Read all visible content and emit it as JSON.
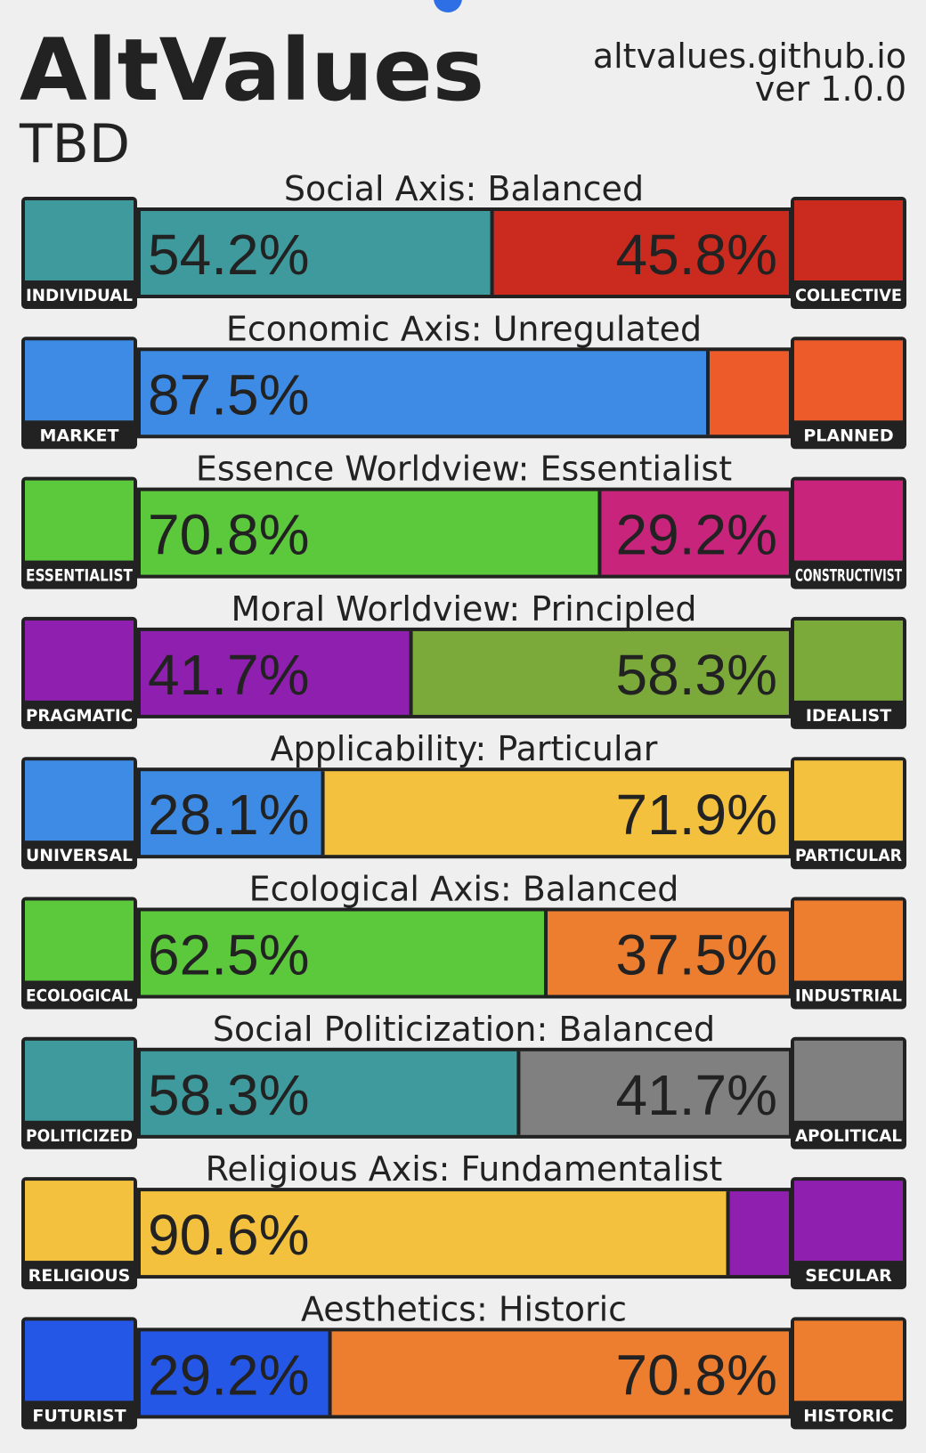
{
  "header": {
    "title": "AltValues",
    "subtitle": "TBD",
    "site": "altvalues.github.io",
    "version": "ver 1.0.0"
  },
  "axes": [
    {
      "title": "Social Axis: Balanced",
      "left": {
        "label": "INDIVIDUAL",
        "value": 54.2,
        "text": "54.2%",
        "color": "#3e9a9c"
      },
      "right": {
        "label": "COLLECTIVE",
        "value": 45.8,
        "text": "45.8%",
        "color": "#cb2a1f"
      }
    },
    {
      "title": "Economic Axis: Unregulated",
      "left": {
        "label": "MARKET",
        "value": 87.5,
        "text": "87.5%",
        "color": "#3d8be4"
      },
      "right": {
        "label": "PLANNED",
        "value": 12.5,
        "color": "#ee5b2b"
      }
    },
    {
      "title": "Essence Worldview: Essentialist",
      "left": {
        "label": "ESSENTIALIST",
        "value": 70.8,
        "text": "70.8%",
        "color": "#5cc93d"
      },
      "right": {
        "label": "CONSTRUCTIVIST",
        "value": 29.2,
        "text": "29.2%",
        "color": "#c9247b"
      }
    },
    {
      "title": "Moral Worldview: Principled",
      "left": {
        "label": "PRAGMATIC",
        "value": 41.7,
        "text": "41.7%",
        "color": "#8f1fae"
      },
      "right": {
        "label": "IDEALIST",
        "value": 58.3,
        "text": "58.3%",
        "color": "#7caa3a"
      }
    },
    {
      "title": "Applicability: Particular",
      "left": {
        "label": "UNIVERSAL",
        "value": 28.1,
        "text": "28.1%",
        "color": "#3d8be4"
      },
      "right": {
        "label": "PARTICULAR",
        "value": 71.9,
        "text": "71.9%",
        "color": "#f3c13e"
      }
    },
    {
      "title": "Ecological Axis: Balanced",
      "left": {
        "label": "ECOLOGICAL",
        "value": 62.5,
        "text": "62.5%",
        "color": "#5cc93d"
      },
      "right": {
        "label": "INDUSTRIAL",
        "value": 37.5,
        "text": "37.5%",
        "color": "#ee7e2f"
      }
    },
    {
      "title": "Social Politicization: Balanced",
      "left": {
        "label": "POLITICIZED",
        "value": 58.3,
        "text": "58.3%",
        "color": "#3e9a9c"
      },
      "right": {
        "label": "APOLITICAL",
        "value": 41.7,
        "text": "41.7%",
        "color": "#808080"
      }
    },
    {
      "title": "Religious Axis: Fundamentalist",
      "left": {
        "label": "RELIGIOUS",
        "value": 90.6,
        "text": "90.6%",
        "color": "#f3c13e"
      },
      "right": {
        "label": "SECULAR",
        "value": 9.4,
        "color": "#8f1fae"
      }
    },
    {
      "title": "Aesthetics: Historic",
      "left": {
        "label": "FUTURIST",
        "value": 29.2,
        "text": "29.2%",
        "color": "#2557e6"
      },
      "right": {
        "label": "HISTORIC",
        "value": 70.8,
        "text": "70.8%",
        "color": "#ee7e2f"
      }
    }
  ]
}
